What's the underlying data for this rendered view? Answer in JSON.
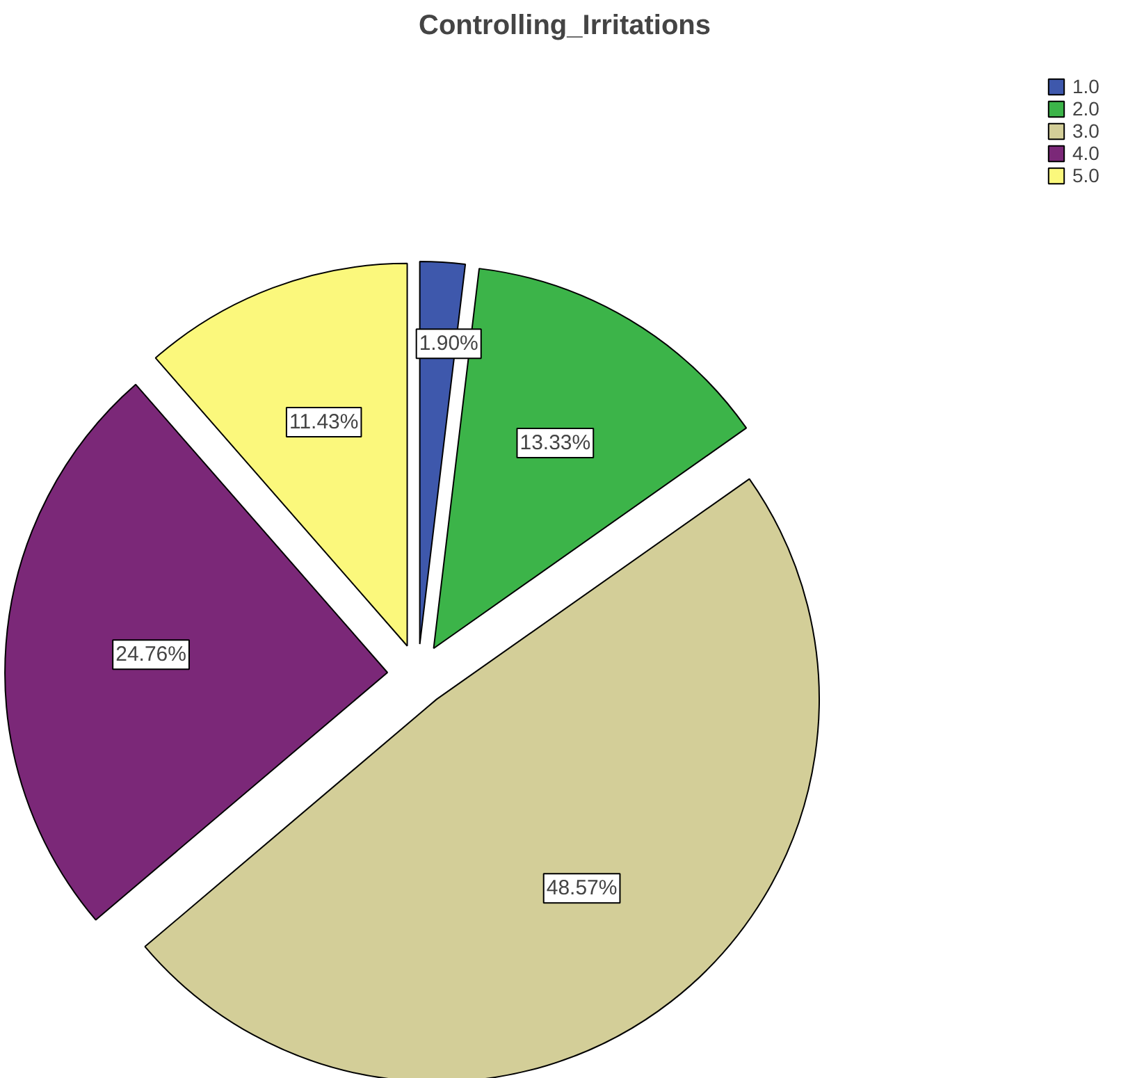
{
  "chart_data": {
    "type": "pie",
    "title": "Controlling_Irritations",
    "categories": [
      "1.0",
      "2.0",
      "3.0",
      "4.0",
      "5.0"
    ],
    "values": [
      1.9,
      13.33,
      48.57,
      24.76,
      11.43
    ],
    "colors": [
      "#3e58ac",
      "#3cb449",
      "#d3ce98",
      "#7b2878",
      "#fbf87c"
    ],
    "value_labels": [
      "1.90%",
      "13.33%",
      "48.57%",
      "24.76%",
      "11.43%"
    ],
    "legend": "top right"
  }
}
